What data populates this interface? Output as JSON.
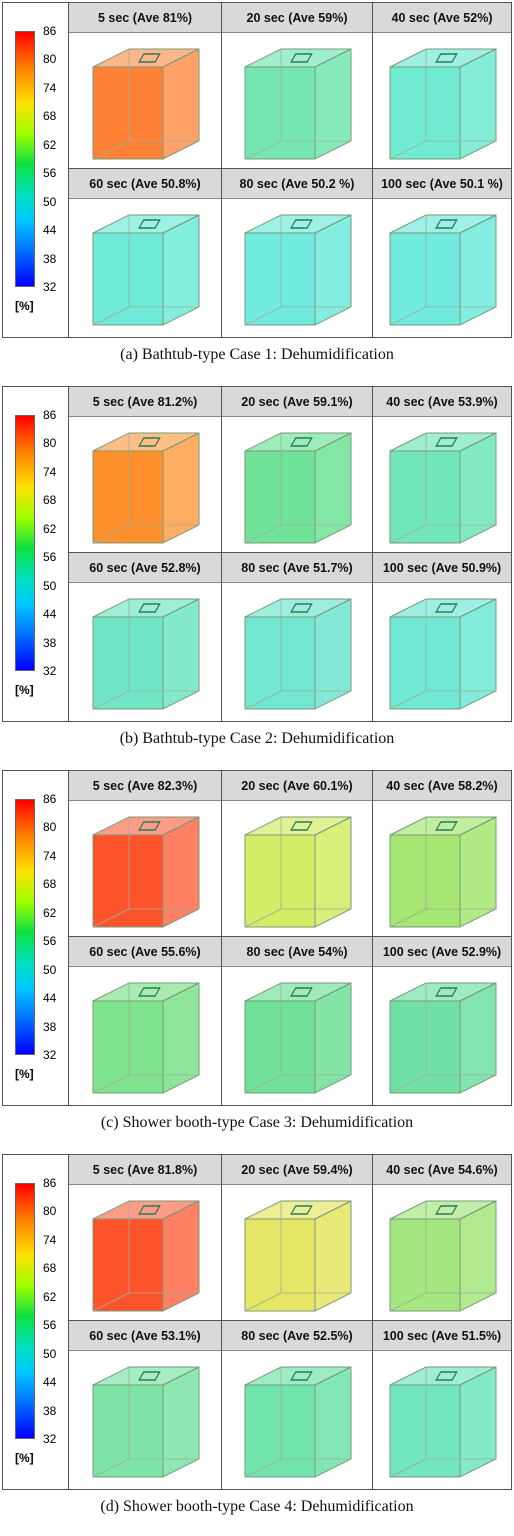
{
  "scale": {
    "ticks": [
      "86",
      "80",
      "74",
      "68",
      "62",
      "56",
      "50",
      "44",
      "38",
      "32"
    ],
    "unit": "[%]",
    "gradient": [
      "#ff0000",
      "#ff8000",
      "#ffe000",
      "#a0ff00",
      "#10e040",
      "#00e0c0",
      "#00c8ff",
      "#0070ff",
      "#0000ff"
    ]
  },
  "panels": [
    {
      "caption": "(a) Bathtub-type Case 1: Dehumidification",
      "cells": [
        {
          "label": "5 sec (Ave 81%)",
          "color": "#ff7a2a"
        },
        {
          "label": "20 sec (Ave 59%)",
          "color": "#52e0a0"
        },
        {
          "label": "40 sec (Ave 52%)",
          "color": "#4fe6c8"
        },
        {
          "label": "60 sec (Ave 50.8%)",
          "color": "#4ee6d0"
        },
        {
          "label": "80 sec (Ave 50.2 %)",
          "color": "#4ee6d4"
        },
        {
          "label": "100 sec (Ave 50.1 %)",
          "color": "#4ee6d6"
        }
      ]
    },
    {
      "caption": "(b) Bathtub-type Case 2: Dehumidification",
      "cells": [
        {
          "label": "5 sec (Ave 81.2%)",
          "color": "#ff8a20"
        },
        {
          "label": "20 sec (Ave 59.1%)",
          "color": "#4edc80"
        },
        {
          "label": "40 sec (Ave 53.9%)",
          "color": "#4ee0a8"
        },
        {
          "label": "60 sec (Ave 52.8%)",
          "color": "#4ee0b8"
        },
        {
          "label": "80 sec (Ave 51.7%)",
          "color": "#4ee0c4"
        },
        {
          "label": "100 sec (Ave 50.9%)",
          "color": "#4ee2cc"
        }
      ]
    },
    {
      "caption": "(c) Shower booth-type Case 3: Dehumidification",
      "cells": [
        {
          "label": "5 sec (Ave 82.3%)",
          "color": "#ff4a20"
        },
        {
          "label": "20 sec (Ave 60.1%)",
          "color": "#c8e840"
        },
        {
          "label": "40 sec (Ave 58.2%)",
          "color": "#90e050"
        },
        {
          "label": "60 sec (Ave 55.6%)",
          "color": "#60dc70"
        },
        {
          "label": "80 sec (Ave 54%)",
          "color": "#4ed880"
        },
        {
          "label": "100 sec (Ave 52.9%)",
          "color": "#4ed890"
        }
      ]
    },
    {
      "caption": "(d) Shower booth-type Case 4: Dehumidification",
      "cells": [
        {
          "label": "5 sec (Ave 81.8%)",
          "color": "#ff4a20"
        },
        {
          "label": "20 sec (Ave 59.4%)",
          "color": "#e0e040"
        },
        {
          "label": "40 sec (Ave 54.6%)",
          "color": "#90e060"
        },
        {
          "label": "60 sec (Ave 53.1%)",
          "color": "#5edc90"
        },
        {
          "label": "80 sec (Ave 52.5%)",
          "color": "#4edc98"
        },
        {
          "label": "100 sec (Ave 51.5%)",
          "color": "#4ee0b0"
        }
      ]
    }
  ]
}
